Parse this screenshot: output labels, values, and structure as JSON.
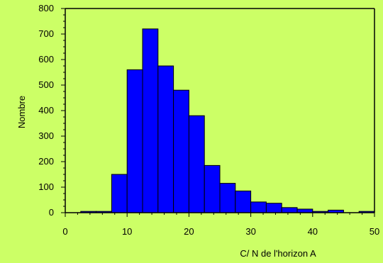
{
  "colors": {
    "background": "#ccff66",
    "bar_fill": "#0000ff",
    "bar_stroke": "#000000",
    "axis": "#000000"
  },
  "chart_data": {
    "type": "bar",
    "title": "",
    "xlabel": "C/ N de l'horizon A",
    "ylabel": "Nombre",
    "xlim": [
      0,
      50
    ],
    "ylim": [
      0,
      800
    ],
    "x_ticks": [
      0,
      10,
      20,
      30,
      40,
      50
    ],
    "y_ticks": [
      0,
      100,
      200,
      300,
      400,
      500,
      600,
      700,
      800
    ],
    "grid": false,
    "bin_width": 2.5,
    "bins": [
      {
        "x0": 2.5,
        "x1": 5.0,
        "count": 5
      },
      {
        "x0": 5.0,
        "x1": 7.5,
        "count": 5
      },
      {
        "x0": 7.5,
        "x1": 10.0,
        "count": 150
      },
      {
        "x0": 10.0,
        "x1": 12.5,
        "count": 560
      },
      {
        "x0": 12.5,
        "x1": 15.0,
        "count": 720
      },
      {
        "x0": 15.0,
        "x1": 17.5,
        "count": 575
      },
      {
        "x0": 17.5,
        "x1": 20.0,
        "count": 480
      },
      {
        "x0": 20.0,
        "x1": 22.5,
        "count": 380
      },
      {
        "x0": 22.5,
        "x1": 25.0,
        "count": 185
      },
      {
        "x0": 25.0,
        "x1": 27.5,
        "count": 115
      },
      {
        "x0": 27.5,
        "x1": 30.0,
        "count": 85
      },
      {
        "x0": 30.0,
        "x1": 32.5,
        "count": 42
      },
      {
        "x0": 32.5,
        "x1": 35.0,
        "count": 37
      },
      {
        "x0": 35.0,
        "x1": 37.5,
        "count": 20
      },
      {
        "x0": 37.5,
        "x1": 40.0,
        "count": 14
      },
      {
        "x0": 40.0,
        "x1": 42.5,
        "count": 5
      },
      {
        "x0": 42.5,
        "x1": 45.0,
        "count": 10
      },
      {
        "x0": 47.5,
        "x1": 50.0,
        "count": 5
      }
    ]
  }
}
